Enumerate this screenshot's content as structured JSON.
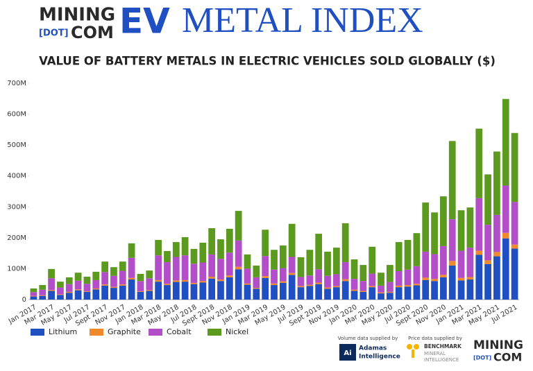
{
  "branding": {
    "logo_top": "MINING",
    "logo_dot": "[DOT]",
    "logo_com": "COM",
    "index_ev": "EV",
    "index_rest": "METAL INDEX"
  },
  "credits": {
    "volume_note": "Volume data supplied by",
    "volume_icon": "Ai",
    "volume_name_1": "Adamas",
    "volume_name_2": "Intelligence",
    "price_note": "Price data supplied by",
    "price_name_1": "BENCHMARK",
    "price_name_2": "MINERAL",
    "price_name_3": "INTELLIGENCE",
    "logo_top": "MINING",
    "logo_dot": "[DOT]",
    "logo_com": "COM"
  },
  "chart_data": {
    "type": "stacked_bar",
    "title": "VALUE OF BATTERY METALS IN ELECTRIC VEHICLES SOLD GLOBALLY ($)",
    "categories": [
      "Jan 2017",
      null,
      "Mar 2017",
      null,
      "May 2017",
      null,
      "Jul 2017",
      null,
      "Sept 2017",
      null,
      "Nov 2017",
      null,
      "Jan 2018",
      null,
      "Mar 2018",
      null,
      "May 2018",
      null,
      "Jul 2018",
      null,
      "Sept 2018",
      null,
      "Nov 2018",
      null,
      "Jan 2019",
      null,
      "Mar 2019",
      null,
      "May 2019",
      null,
      "Jul 2019",
      null,
      "Sept 2019",
      null,
      "Nov 2019",
      null,
      "Jan 2020",
      null,
      "Mar 2020",
      null,
      "May 2020",
      null,
      "Jul 2020",
      null,
      "Sept 2020",
      null,
      "Nov 2020",
      null,
      "Jan 2021",
      null,
      "Mar 2021",
      null,
      "May 2021",
      null,
      "Jul 2021"
    ],
    "series": [
      {
        "name": "Lithium",
        "color": "#1f4fc1",
        "values": [
          10,
          12,
          28,
          15,
          22,
          30,
          25,
          33,
          45,
          38,
          45,
          65,
          25,
          28,
          58,
          47,
          57,
          58,
          50,
          55,
          68,
          60,
          72,
          98,
          48,
          35,
          70,
          47,
          54,
          80,
          40,
          44,
          50,
          35,
          40,
          60,
          28,
          25,
          40,
          20,
          22,
          40,
          42,
          46,
          63,
          60,
          72,
          110,
          62,
          65,
          145,
          115,
          140,
          198,
          165
        ]
      },
      {
        "name": "Graphite",
        "color": "#f0892c",
        "values": [
          2,
          2,
          3,
          2,
          3,
          3,
          2,
          3,
          4,
          3,
          4,
          5,
          2,
          3,
          5,
          4,
          5,
          5,
          4,
          5,
          6,
          5,
          6,
          8,
          4,
          3,
          6,
          5,
          5,
          6,
          4,
          4,
          5,
          4,
          4,
          6,
          4,
          3,
          4,
          3,
          3,
          5,
          5,
          5,
          8,
          7,
          8,
          15,
          8,
          8,
          13,
          12,
          14,
          18,
          13
        ]
      },
      {
        "name": "Cobalt",
        "color": "#b24ec8",
        "values": [
          12,
          18,
          38,
          22,
          25,
          28,
          24,
          27,
          40,
          36,
          44,
          65,
          33,
          38,
          80,
          70,
          76,
          80,
          62,
          60,
          72,
          67,
          74,
          85,
          48,
          34,
          65,
          45,
          43,
          52,
          29,
          30,
          43,
          38,
          38,
          55,
          35,
          32,
          40,
          22,
          32,
          47,
          50,
          57,
          84,
          80,
          93,
          135,
          88,
          95,
          170,
          115,
          120,
          153,
          138
        ]
      },
      {
        "name": "Nickel",
        "color": "#5c9a1f",
        "values": [
          12,
          15,
          30,
          19,
          22,
          26,
          23,
          27,
          34,
          28,
          30,
          47,
          23,
          25,
          50,
          36,
          48,
          59,
          48,
          64,
          85,
          63,
          77,
          96,
          46,
          38,
          85,
          64,
          73,
          107,
          64,
          83,
          115,
          78,
          86,
          126,
          63,
          52,
          87,
          42,
          55,
          94,
          96,
          107,
          159,
          135,
          161,
          253,
          131,
          130,
          225,
          163,
          205,
          280,
          223
        ]
      }
    ],
    "ylim": [
      0,
      700
    ],
    "yticks": [
      {
        "value": 0,
        "label": "0"
      },
      {
        "value": 100,
        "label": "100M"
      },
      {
        "value": 200,
        "label": "200M"
      },
      {
        "value": 300,
        "label": "300M"
      },
      {
        "value": 400,
        "label": "400M"
      },
      {
        "value": 500,
        "label": "500M"
      },
      {
        "value": 600,
        "label": "600M"
      },
      {
        "value": 700,
        "label": "700M"
      }
    ],
    "grid": false,
    "legend": "bottom-left"
  }
}
